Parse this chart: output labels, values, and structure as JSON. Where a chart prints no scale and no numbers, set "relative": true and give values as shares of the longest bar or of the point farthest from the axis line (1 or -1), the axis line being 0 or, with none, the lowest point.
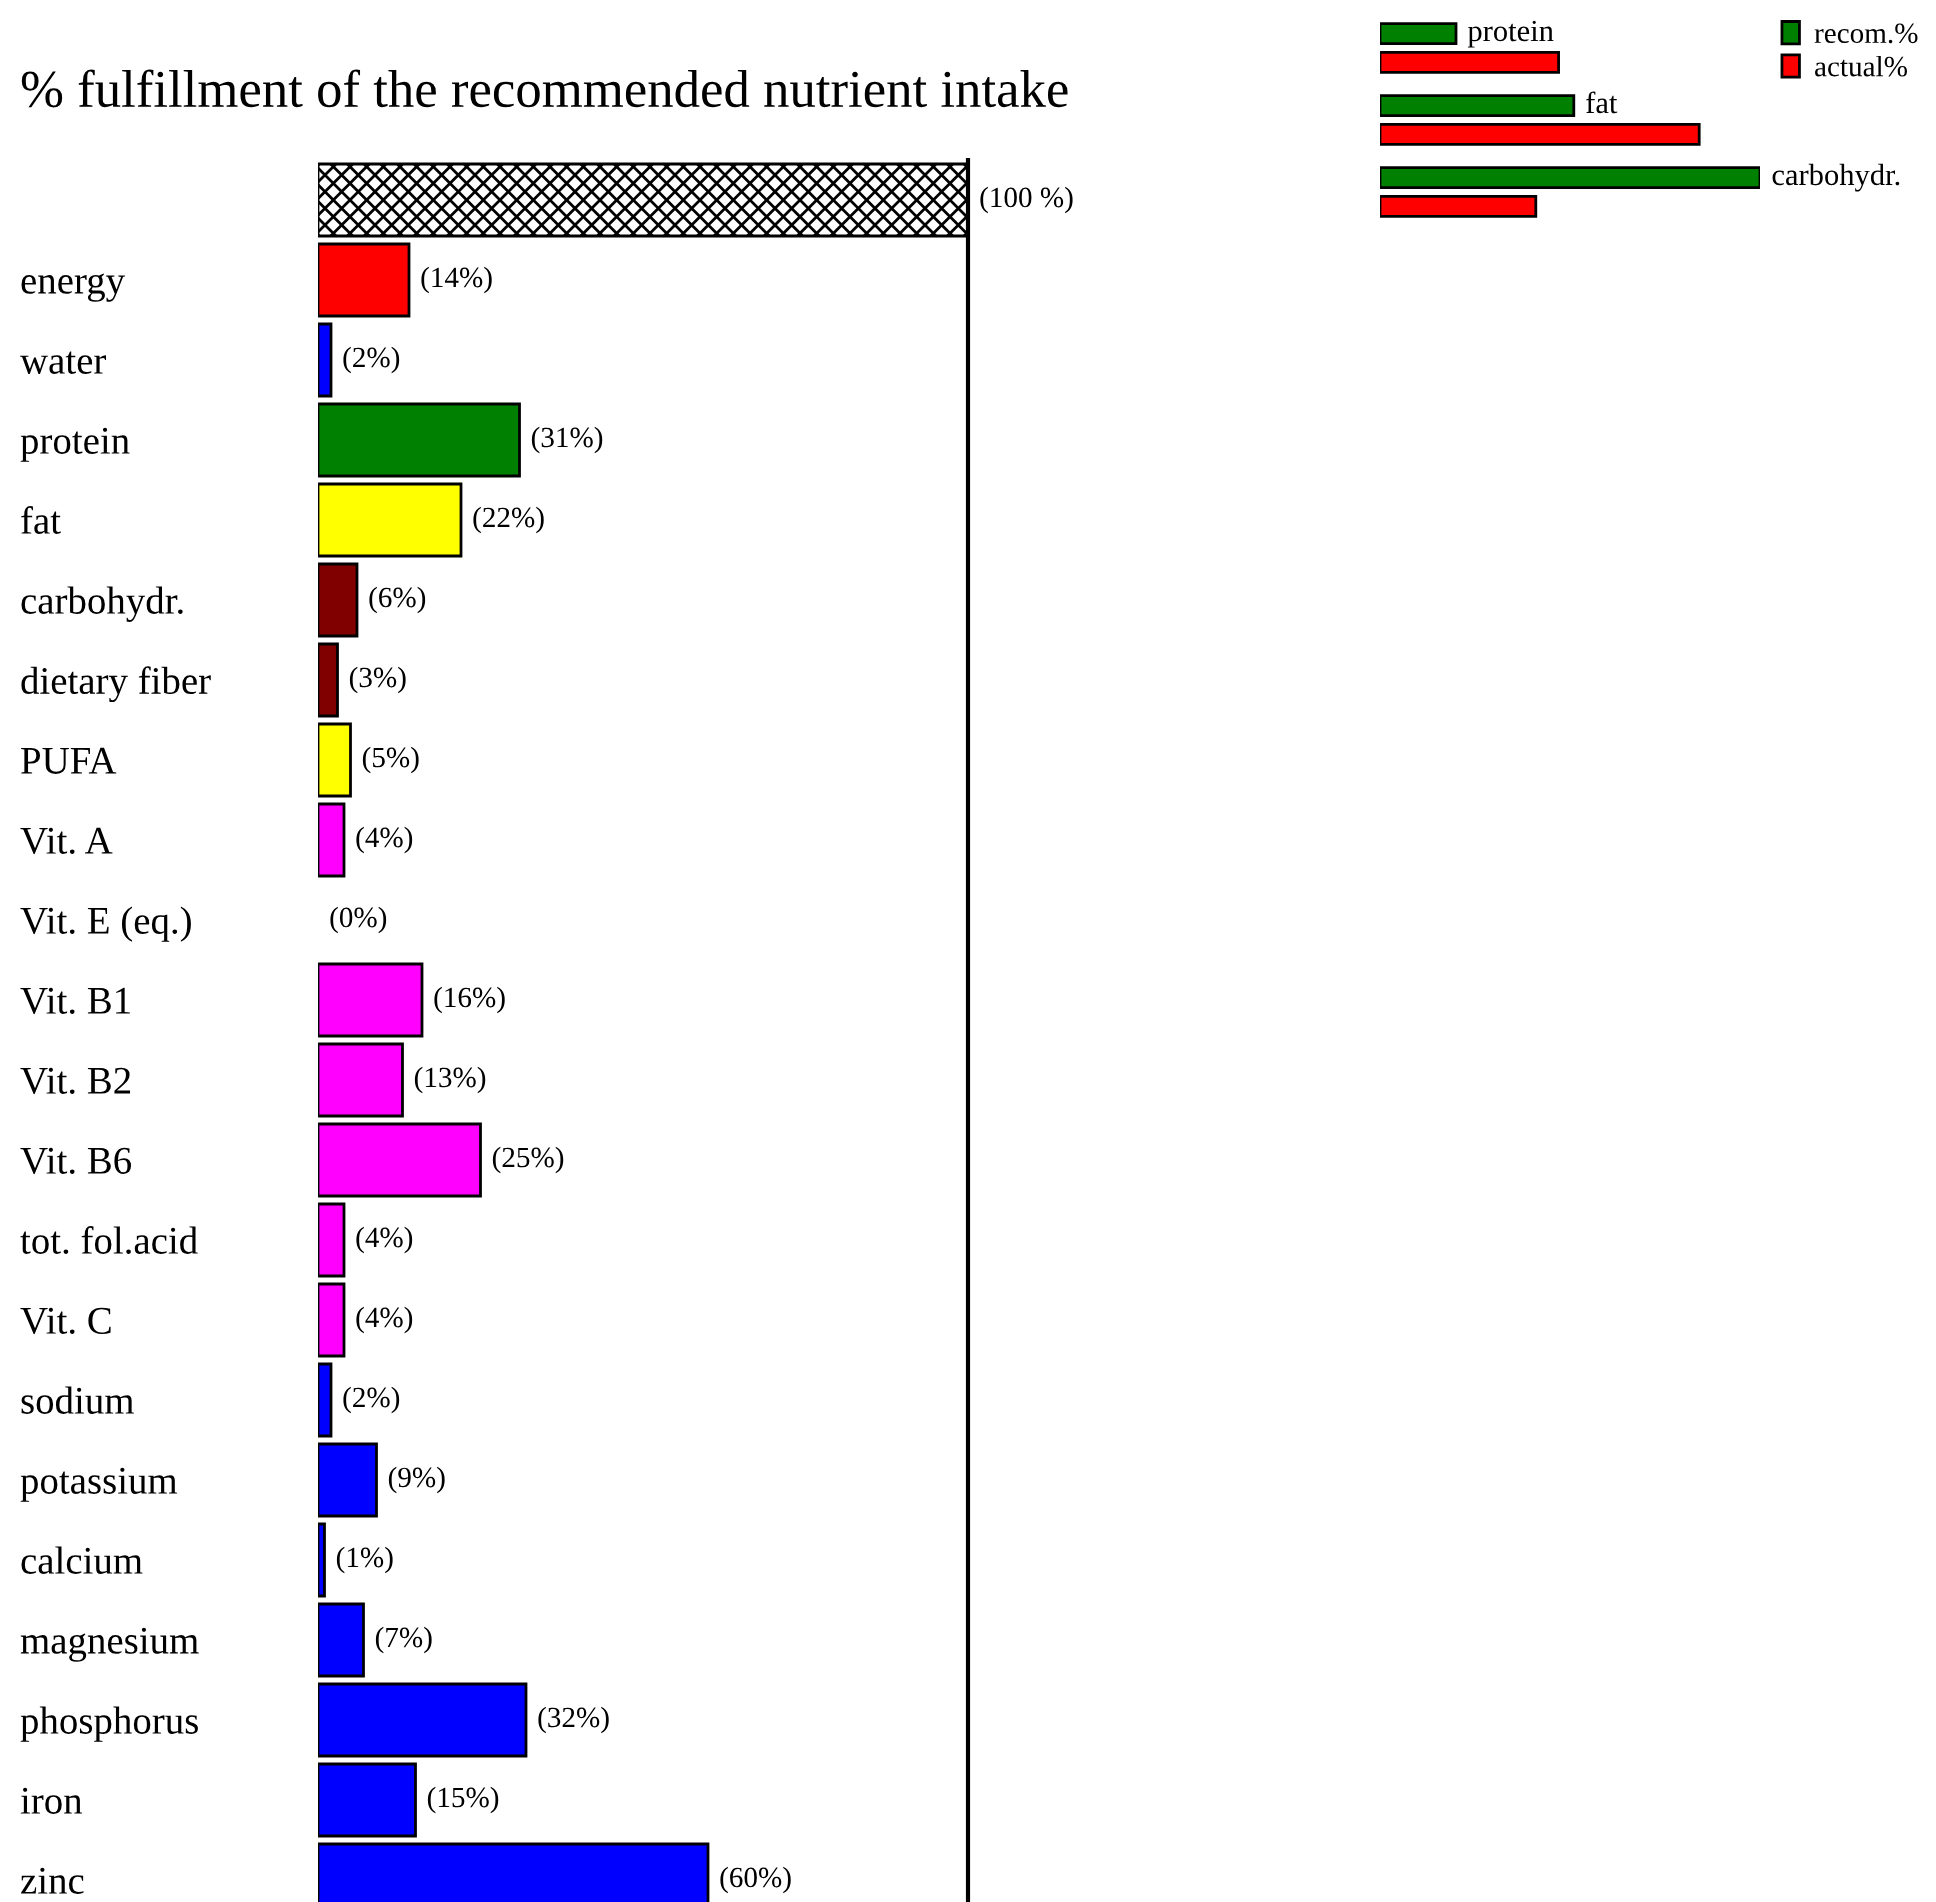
{
  "chart_data": [
    {
      "type": "bar",
      "orientation": "horizontal",
      "title": "% fulfillment of the recommended nutrient intake",
      "categories": [
        null,
        "energy",
        "water",
        "protein",
        "fat",
        "carbohydr.",
        "dietary fiber",
        "PUFA",
        "Vit. A",
        "Vit. E (eq.)",
        "Vit. B1",
        "Vit. B2",
        "Vit. B6",
        "tot. fol.acid",
        "Vit. C",
        "sodium",
        "potassium",
        "calcium",
        "magnesium",
        "phosphorus",
        "iron",
        "zinc"
      ],
      "values": [
        100,
        14,
        2,
        31,
        22,
        6,
        3,
        5,
        4,
        0,
        16,
        13,
        25,
        4,
        4,
        2,
        9,
        1,
        7,
        32,
        15,
        60
      ],
      "value_labels": [
        "(100 %)",
        "(14%)",
        "(2%)",
        "(31%)",
        "(22%)",
        "(6%)",
        "(3%)",
        "(5%)",
        "(4%)",
        "(0%)",
        "(16%)",
        "(13%)",
        "(25%)",
        "(4%)",
        "(4%)",
        "(2%)",
        "(9%)",
        "(1%)",
        "(7%)",
        "(32%)",
        "(15%)",
        "(60%)"
      ],
      "colors": [
        "#000000",
        "#ff0000",
        "#0000ff",
        "#008000",
        "#ffff00",
        "#800000",
        "#800000",
        "#ffff00",
        "#ff00ff",
        "#ff00ff",
        "#ff00ff",
        "#ff00ff",
        "#ff00ff",
        "#ff00ff",
        "#ff00ff",
        "#0000ff",
        "#0000ff",
        "#0000ff",
        "#0000ff",
        "#0000ff",
        "#0000ff",
        "#0000ff"
      ],
      "xlim": [
        0,
        100
      ],
      "tick_labels": "y",
      "grid": false
    },
    {
      "type": "bar",
      "orientation": "horizontal",
      "relative": true,
      "categories": [
        null,
        null,
        null
      ],
      "annotations": [
        "protein",
        "fat",
        "carbohydr."
      ],
      "series": [
        {
          "name": "recom.%",
          "color": "#008000",
          "values": [
            0.2,
            0.51,
            1
          ]
        },
        {
          "name": "actual%",
          "color": "#ff0000",
          "values": [
            0.47,
            0.84,
            0.41
          ]
        }
      ],
      "legend": "top right",
      "grid": false,
      "tick_labels": false
    }
  ]
}
